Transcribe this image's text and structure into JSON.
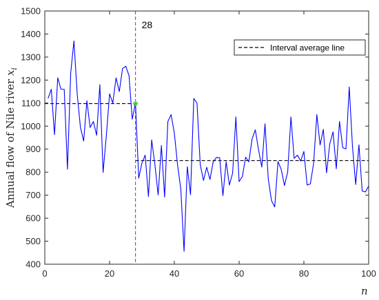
{
  "chart_data": {
    "type": "line",
    "xlabel": "n",
    "ylabel": "Annual flow of Nile river",
    "ylabel_var": "x",
    "ylabel_sub": "i",
    "xlim": [
      0,
      100
    ],
    "ylim": [
      400,
      1500
    ],
    "xticks": [
      "0",
      "20",
      "40",
      "60",
      "80",
      "100"
    ],
    "yticks": [
      "400",
      "500",
      "600",
      "700",
      "800",
      "900",
      "1000",
      "1100",
      "1200",
      "1300",
      "1400",
      "1500"
    ],
    "grid": false,
    "legend_position": "top-right",
    "colors": {
      "series": "#0000ff",
      "changepoint": "#9933cc",
      "average": "#000000",
      "marker": "#33cc33"
    },
    "series": [
      {
        "x": [
          1,
          2,
          3,
          4,
          5,
          6,
          7,
          8,
          9,
          10,
          11,
          12,
          13,
          14,
          15,
          16,
          17,
          18,
          19,
          20,
          21,
          22,
          23,
          24,
          25,
          26,
          27,
          28,
          29,
          30,
          31,
          32,
          33,
          34,
          35,
          36,
          37,
          38,
          39,
          40,
          41,
          42,
          43,
          44,
          45,
          46,
          47,
          48,
          49,
          50,
          51,
          52,
          53,
          54,
          55,
          56,
          57,
          58,
          59,
          60,
          61,
          62,
          63,
          64,
          65,
          66,
          67,
          68,
          69,
          70,
          71,
          72,
          73,
          74,
          75,
          76,
          77,
          78,
          79,
          80,
          81,
          82,
          83,
          84,
          85,
          86,
          87,
          88,
          89,
          90,
          91,
          92,
          93,
          94,
          95,
          96,
          97,
          98,
          99,
          100
        ],
        "values": [
          1120,
          1160,
          963,
          1210,
          1160,
          1160,
          813,
          1230,
          1370,
          1140,
          995,
          935,
          1110,
          994,
          1020,
          960,
          1180,
          799,
          958,
          1140,
          1100,
          1210,
          1150,
          1250,
          1260,
          1220,
          1030,
          1100,
          774,
          840,
          874,
          694,
          940,
          833,
          701,
          916,
          692,
          1020,
          1050,
          969,
          831,
          726,
          456,
          824,
          702,
          1120,
          1100,
          832,
          764,
          821,
          768,
          845,
          864,
          862,
          698,
          845,
          744,
          796,
          1040,
          759,
          781,
          865,
          845,
          944,
          984,
          897,
          822,
          1010,
          771,
          676,
          649,
          846,
          812,
          742,
          801,
          1040,
          860,
          874,
          848,
          890,
          744,
          749,
          838,
          1050,
          918,
          986,
          797,
          923,
          975,
          815,
          1020,
          906,
          901,
          1170,
          912,
          746,
          919,
          718,
          714,
          740
        ]
      }
    ],
    "changepoint": {
      "x": 28,
      "label": "28"
    },
    "average_lines": [
      {
        "x_start": 0,
        "x_end": 28,
        "y": 1097.75
      },
      {
        "x_start": 28,
        "x_end": 100,
        "y": 849.97
      }
    ],
    "legend": {
      "label": "Interval average line"
    }
  }
}
